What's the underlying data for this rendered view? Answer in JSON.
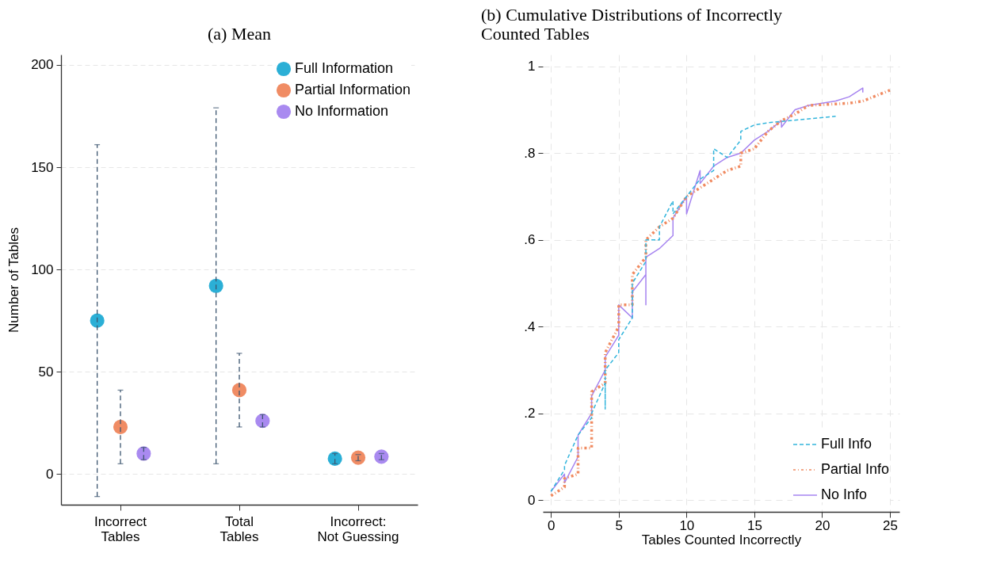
{
  "chart_data": [
    {
      "type": "scatter",
      "title": "(a) Mean",
      "ylabel": "Number of Tables",
      "categories": [
        "Incorrect\nTables",
        "Total\nTables",
        "Incorrect:\nNot Guessing"
      ],
      "ylim": [
        -15,
        205
      ],
      "yticks": [
        0,
        50,
        100,
        150,
        200
      ],
      "grid": "y",
      "legend": "top right",
      "marker": "circle",
      "series": [
        {
          "name": "Full Information",
          "color": "#2bafd6",
          "values": [
            75,
            92,
            7.5
          ],
          "errors": [
            [
              -11,
              161
            ],
            [
              5,
              179
            ],
            [
              5,
              10
            ]
          ]
        },
        {
          "name": "Partial Information",
          "color": "#f08c64",
          "values": [
            23,
            41,
            8
          ],
          "errors": [
            [
              5,
              41
            ],
            [
              23,
              59
            ],
            [
              6.5,
              9.5
            ]
          ]
        },
        {
          "name": "No Information",
          "color": "#a98af0",
          "values": [
            10,
            26,
            8.5
          ],
          "errors": [
            [
              7,
              13
            ],
            [
              23,
              29
            ],
            [
              7,
              10
            ]
          ]
        }
      ]
    },
    {
      "type": "line",
      "title": "(b) Cumulative Distributions of Incorrectly Counted Tables",
      "xlabel": "Tables Counted Incorrectly",
      "xlim": [
        -0.6,
        25.7
      ],
      "ylim": [
        -0.027,
        1.027
      ],
      "xticks": [
        0,
        5,
        10,
        15,
        20,
        25
      ],
      "yticks": [
        0,
        {
          "value": 0.2,
          "label": ".2"
        },
        {
          "value": 0.4,
          "label": ".4"
        },
        {
          "value": 0.6,
          "label": ".6"
        },
        {
          "value": 0.8,
          "label": ".8"
        },
        1
      ],
      "grid": true,
      "legend": "bottom right",
      "series": [
        {
          "name": "Full Info",
          "color": "#33b5dc",
          "line_style": "dashed",
          "x": [
            0,
            1,
            1,
            2,
            3,
            3,
            4,
            4,
            4,
            5,
            5,
            6,
            6,
            7,
            7,
            8,
            8,
            9,
            9,
            10,
            11,
            12,
            12,
            13,
            14,
            14,
            15,
            16,
            21
          ],
          "values": [
            0.02,
            0.07,
            0.08,
            0.15,
            0.19,
            0.2,
            0.27,
            0.21,
            0.3,
            0.34,
            0.37,
            0.42,
            0.5,
            0.55,
            0.6,
            0.6,
            0.63,
            0.69,
            0.66,
            0.7,
            0.74,
            0.76,
            0.81,
            0.79,
            0.83,
            0.85,
            0.865,
            0.87,
            0.885
          ]
        },
        {
          "name": "Partial Info",
          "color": "#f08a60",
          "line_style": "dotted",
          "x": [
            0,
            1,
            1,
            2,
            2,
            3,
            3,
            4,
            4,
            5,
            5,
            6,
            6,
            7,
            7,
            8,
            9,
            10,
            11,
            12,
            13,
            14,
            14,
            15,
            16,
            17,
            18,
            19,
            22,
            23,
            25
          ],
          "values": [
            0.01,
            0.03,
            0.05,
            0.06,
            0.12,
            0.12,
            0.25,
            0.27,
            0.34,
            0.4,
            0.45,
            0.45,
            0.52,
            0.56,
            0.6,
            0.63,
            0.65,
            0.7,
            0.72,
            0.74,
            0.76,
            0.77,
            0.8,
            0.81,
            0.85,
            0.875,
            0.89,
            0.91,
            0.915,
            0.92,
            0.945
          ]
        },
        {
          "name": "No Info",
          "color": "#a684f0",
          "line_style": "solid",
          "x": [
            0,
            1,
            1,
            2,
            2,
            3,
            3,
            4,
            4,
            5,
            5,
            6,
            6,
            7,
            7,
            7,
            8,
            9,
            9,
            10,
            10,
            11,
            11,
            12,
            13,
            14,
            15,
            16,
            17,
            17,
            18,
            19,
            21,
            22,
            23,
            23
          ],
          "values": [
            0.02,
            0.06,
            0.04,
            0.1,
            0.15,
            0.2,
            0.24,
            0.3,
            0.33,
            0.38,
            0.45,
            0.42,
            0.48,
            0.52,
            0.45,
            0.56,
            0.58,
            0.61,
            0.65,
            0.7,
            0.66,
            0.76,
            0.73,
            0.77,
            0.79,
            0.8,
            0.83,
            0.85,
            0.875,
            0.86,
            0.9,
            0.91,
            0.92,
            0.93,
            0.95,
            0.94
          ]
        }
      ]
    }
  ]
}
